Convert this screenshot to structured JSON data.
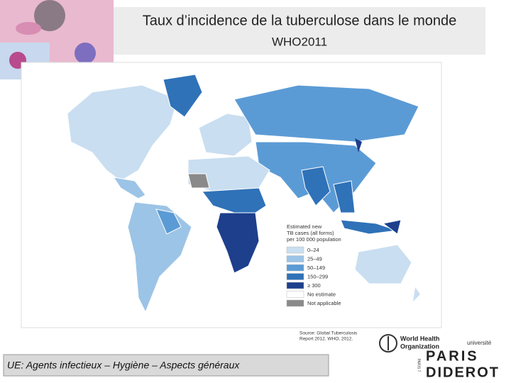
{
  "header": {
    "title_lines": [
      "Taux d’incidence de la tuberculose dans le monde",
      "WHO2011"
    ]
  },
  "legend": {
    "title_lines": [
      "Estimated new",
      "TB cases (all forms)",
      "per 100 000 population"
    ],
    "entries": [
      {
        "label": "0–24",
        "color": "#c9def0"
      },
      {
        "label": "25–49",
        "color": "#9cc4e6"
      },
      {
        "label": "50–149",
        "color": "#5b9bd5"
      },
      {
        "label": "150–299",
        "color": "#2f72b8"
      },
      {
        "label": "≥ 300",
        "color": "#1d3f8c"
      },
      {
        "label": "No estimate",
        "color": "#ffffff"
      },
      {
        "label": "Not applicable",
        "color": "#8a8a8a"
      }
    ]
  },
  "source": [
    "Source: Global Tuberculosis",
    "Report 2012. WHO, 2012."
  ],
  "who_logo": [
    "World Health",
    "Organization"
  ],
  "university_logo": {
    "top": "université",
    "name1": "PARIS",
    "name2": "DIDEROT",
    "side": "PARIS 7"
  },
  "footer": "UE: Agents infectieux – Hygiène – Aspects généraux"
}
